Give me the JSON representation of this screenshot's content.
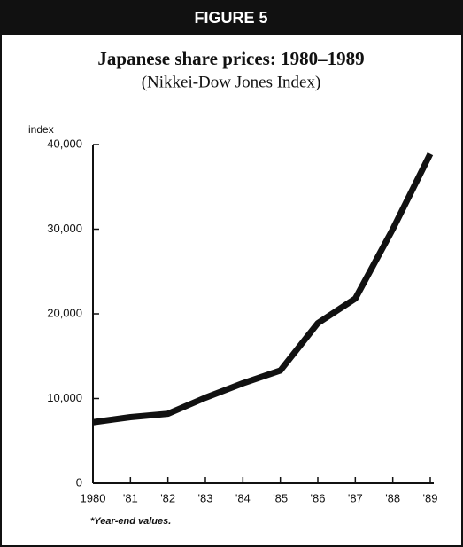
{
  "header": "FIGURE 5",
  "chart_data": {
    "type": "line",
    "title": "Japanese share prices: 1980–1989",
    "subtitle": "(Nikkei-Dow Jones Index)",
    "y_label": "index",
    "footnote": "*Year-end values.",
    "categories": [
      "1980",
      "'81",
      "'82",
      "'83",
      "'84",
      "'85",
      "'86",
      "'87",
      "'88",
      "'89"
    ],
    "values": [
      7200,
      7800,
      8200,
      10100,
      11800,
      13300,
      18900,
      21800,
      30000,
      38900
    ],
    "color": "#111111",
    "ylim": [
      0,
      40000
    ],
    "yticks": [
      0,
      {
        "value": 10000,
        "label": "10,000"
      },
      {
        "value": 20000,
        "label": "20,000"
      },
      {
        "value": 30000,
        "label": "30,000"
      },
      {
        "value": 40000,
        "label": "40,000"
      }
    ],
    "grid": false
  }
}
